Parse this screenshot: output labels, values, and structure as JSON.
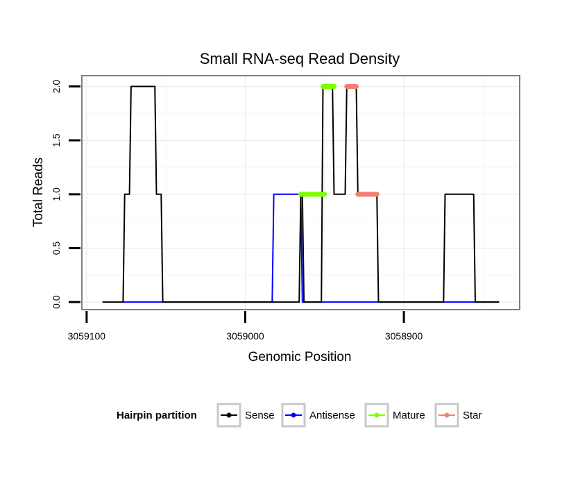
{
  "chart_data": {
    "type": "line",
    "title": "Small RNA-seq Read Density",
    "xlabel": "Genomic Position",
    "ylabel": "Total Reads",
    "x_reversed": true,
    "xlim": [
      3059103,
      3058827
    ],
    "ylim": [
      -0.07,
      2.1
    ],
    "xticks": [
      3059100,
      3059000,
      3058900
    ],
    "xtick_labels": [
      "3059100",
      "3059000",
      "3058900"
    ],
    "yticks": [
      0,
      0.5,
      1,
      1.5,
      2
    ],
    "ytick_labels": [
      "0.0",
      "0.5",
      "1.0",
      "1.5",
      "2.0"
    ],
    "grid": true,
    "legend": {
      "title": "Hairpin partition",
      "position": "bottom",
      "entries": [
        "Sense",
        "Antisense",
        "Mature",
        "Star"
      ]
    },
    "series": [
      {
        "name": "Sense",
        "color": "#000000",
        "x": [
          3059090,
          3059077,
          3059076,
          3059073,
          3059072,
          3059057,
          3059056,
          3059053,
          3059052,
          3058966,
          3058965,
          3058964,
          3058963,
          3058952,
          3058951,
          3058945,
          3058944,
          3058937,
          3058936,
          3058930,
          3058929,
          3058917,
          3058916,
          3058875,
          3058874,
          3058856,
          3058855,
          3058840
        ],
        "values": [
          0,
          0,
          1,
          1,
          2,
          2,
          1,
          1,
          0,
          0,
          1,
          1,
          0,
          0,
          2,
          2,
          1,
          1,
          2,
          2,
          1,
          1,
          0,
          0,
          1,
          1,
          0,
          0
        ]
      },
      {
        "name": "Antisense",
        "color": "#0000ff",
        "x": [
          3059077,
          3058983,
          3058982,
          3058965,
          3058964,
          3058875,
          3058874,
          3058856,
          3058855,
          3058840
        ],
        "values": [
          0,
          0,
          1,
          1,
          0,
          0,
          0,
          0,
          0,
          0
        ]
      },
      {
        "name": "Mature",
        "color": "#7fff00",
        "segments": [
          {
            "x": [
              3058965,
              3058950
            ],
            "values": [
              1,
              1
            ]
          },
          {
            "x": [
              3058951,
              3058944
            ],
            "values": [
              2,
              2
            ]
          }
        ]
      },
      {
        "name": "Star",
        "color": "#f08072",
        "segments": [
          {
            "x": [
              3058936,
              3058930
            ],
            "values": [
              2,
              2
            ]
          },
          {
            "x": [
              3058929,
              3058917
            ],
            "values": [
              1,
              1
            ]
          }
        ]
      }
    ]
  }
}
